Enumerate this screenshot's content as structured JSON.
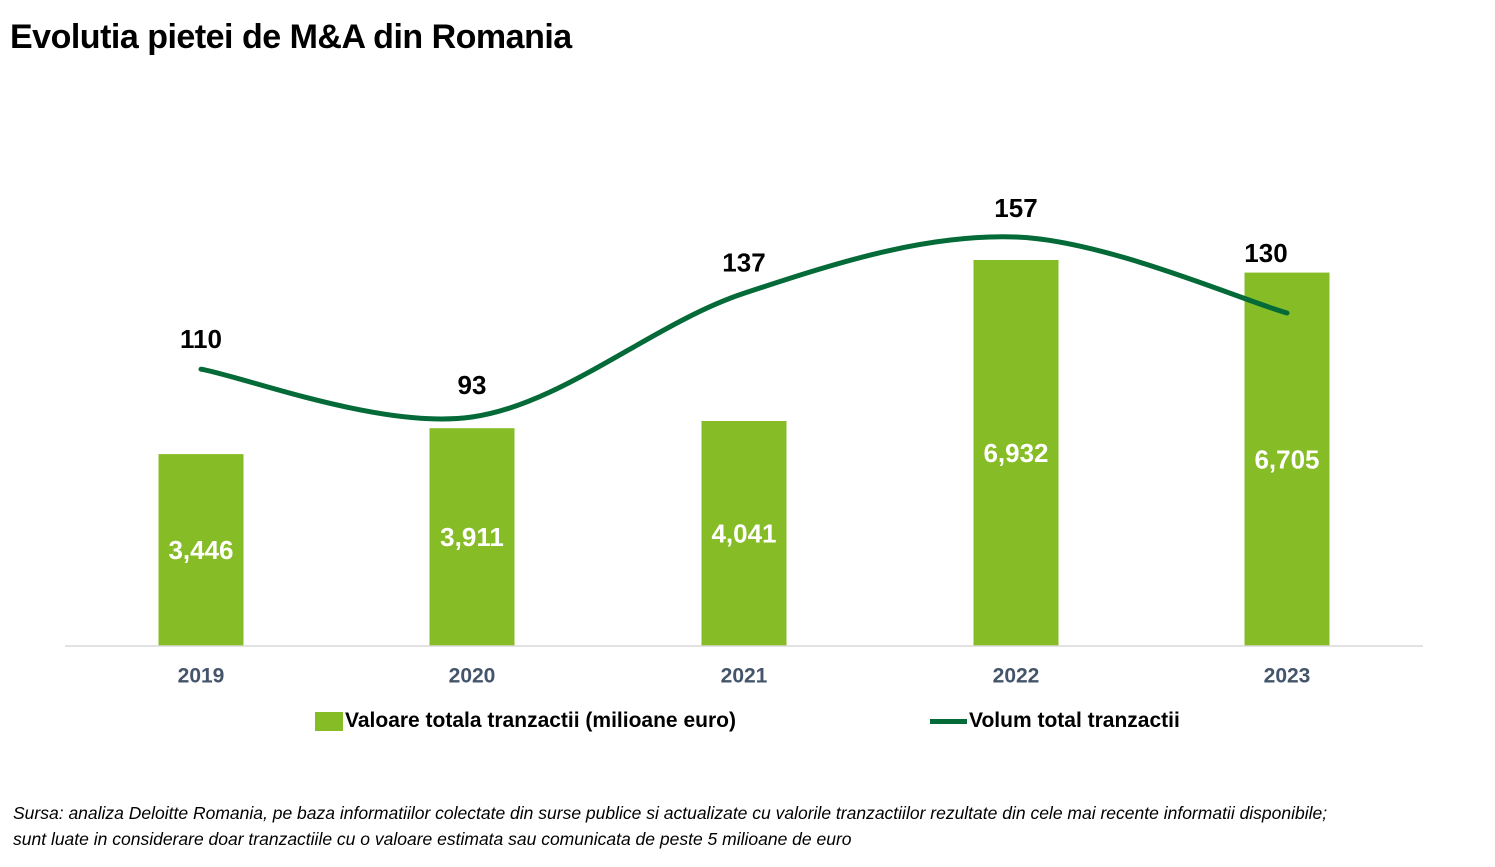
{
  "title": "Evolutia pietei de M&A din Romania",
  "chart_data": {
    "type": "combo-bar-line",
    "categories": [
      "2019",
      "2020",
      "2021",
      "2022",
      "2023"
    ],
    "series": [
      {
        "name": "Valoare totala tranzactii (milioane euro)",
        "type": "bar",
        "values": [
          3446,
          3911,
          4041,
          6932,
          6705
        ],
        "value_labels": [
          "3,446",
          "3,911",
          "4,041",
          "6,932",
          "6,705"
        ],
        "color": "#86BC25",
        "label_color": "#FFFFFF"
      },
      {
        "name": "Volum total tranzactii",
        "type": "line",
        "smooth": true,
        "values": [
          110,
          93,
          137,
          157,
          130
        ],
        "value_labels": [
          "110",
          "93",
          "137",
          "157",
          "130"
        ],
        "color": "#046A38",
        "label_color": "#000000"
      }
    ],
    "title": "Evolutia pietei de M&A din Romania",
    "xlabel": "",
    "ylabel": "",
    "y_axis_visible": false,
    "grid": false,
    "data_labels": true,
    "legend_position": "bottom"
  },
  "legend": {
    "items": [
      {
        "label": "Valoare totala tranzactii (milioane euro)",
        "swatch": "bar-green-square"
      },
      {
        "label": "Volum total tranzactii",
        "swatch": "dark-green-line"
      }
    ]
  },
  "source_note": {
    "line1": "Sursa: analiza Deloitte Romania, pe baza informatiilor colectate din surse publice si actualizate cu valorile tranzactiilor rezultate din cele mai recente informatii disponibile;",
    "line2": "sunt luate in considerare doar tranzactiile cu o valoare estimata sau comunicata de peste 5 milioane de euro"
  },
  "colors": {
    "bar_green": "#86BC25",
    "line_dark_green": "#046A38",
    "axis_line": "#D9D9D9",
    "axis_label": "#44546A",
    "title_text": "#000000"
  }
}
